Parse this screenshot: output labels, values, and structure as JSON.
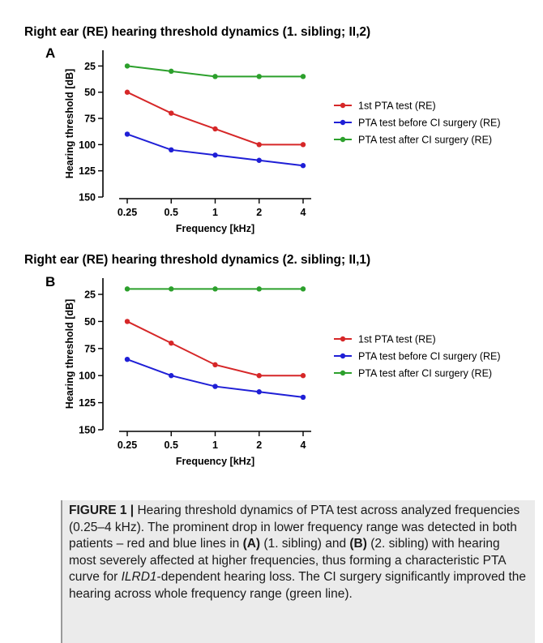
{
  "chart_data": [
    {
      "type": "line",
      "panel_label": "A",
      "title": "Right  ear (RE) hearing threshold dynamics  (1. sibling; II,2)",
      "xlabel": "Frequency [kHz]",
      "ylabel": "Hearing threshold [dB]",
      "categories": [
        "0.25",
        "0.5",
        "1",
        "2",
        "4"
      ],
      "y_ticks": [
        25,
        50,
        75,
        100,
        125,
        150
      ],
      "ylim": [
        150,
        10
      ],
      "y_axis_inverted": true,
      "legend_position": "right",
      "series": [
        {
          "name": "1st PTA test (RE)",
          "color": "#d62728",
          "values": [
            50,
            70,
            85,
            100,
            100
          ]
        },
        {
          "name": "PTA test before CI surgery (RE)",
          "color": "#1f1fd6",
          "values": [
            90,
            105,
            110,
            115,
            120
          ]
        },
        {
          "name": "PTA test after CI surgery (RE)",
          "color": "#2ca02c",
          "values": [
            25,
            30,
            35,
            35,
            35
          ]
        }
      ]
    },
    {
      "type": "line",
      "panel_label": "B",
      "title": "Right  ear (RE) hearing threshold dynamics  (2. sibling; II,1)",
      "xlabel": "Frequency [kHz]",
      "ylabel": "Hearing threshold [dB]",
      "categories": [
        "0.25",
        "0.5",
        "1",
        "2",
        "4"
      ],
      "y_ticks": [
        25,
        50,
        75,
        100,
        125,
        150
      ],
      "ylim": [
        150,
        10
      ],
      "y_axis_inverted": true,
      "legend_position": "right",
      "series": [
        {
          "name": "1st PTA test (RE)",
          "color": "#d62728",
          "values": [
            50,
            70,
            90,
            100,
            100
          ]
        },
        {
          "name": "PTA test before CI surgery (RE)",
          "color": "#1f1fd6",
          "values": [
            85,
            100,
            110,
            115,
            120
          ]
        },
        {
          "name": "PTA test after CI surgery (RE)",
          "color": "#2ca02c",
          "values": [
            20,
            20,
            20,
            20,
            20
          ]
        }
      ]
    }
  ],
  "caption": {
    "figure_label": "FIGURE 1 |",
    "text_1": " Hearing threshold dynamics of PTA test across analyzed frequencies (0.25–4 kHz). The prominent drop in lower frequency range was detected in both patients – red and blue lines in ",
    "ref_a": "(A)",
    "text_2": " (1. sibling) and ",
    "ref_b": "(B)",
    "text_3": " (2. sibling) with hearing most severely affected at higher frequencies, thus forming a characteristic PTA curve for ",
    "gene": "ILRD1",
    "text_4": "-dependent hearing loss. The CI surgery significantly improved the hearing across whole frequency range (green line)."
  }
}
